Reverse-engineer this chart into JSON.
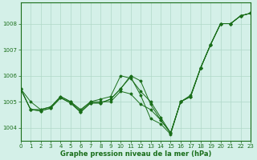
{
  "background_color": "#d4f0e8",
  "grid_color": "#b0d8c8",
  "line_color": "#1a6e1a",
  "xlabel": "Graphe pression niveau de la mer (hPa)",
  "xlim": [
    0,
    23
  ],
  "ylim": [
    1003.5,
    1008.8
  ],
  "yticks": [
    1004,
    1005,
    1006,
    1007,
    1008
  ],
  "xticks": [
    0,
    1,
    2,
    3,
    4,
    5,
    6,
    7,
    8,
    9,
    10,
    11,
    12,
    13,
    14,
    15,
    16,
    17,
    18,
    19,
    20,
    21,
    22,
    23
  ],
  "series": [
    [
      1005.5,
      1005.0,
      1004.7,
      1004.8,
      1005.2,
      1005.0,
      1004.7,
      1005.0,
      1005.1,
      1005.2,
      1006.0,
      1005.9,
      1005.4,
      1005.0,
      1004.4,
      1003.8,
      1005.0,
      1005.2,
      1006.3,
      1007.2,
      1008.0,
      1008.0,
      1008.3,
      1008.4
    ],
    [
      1005.5,
      1004.7,
      1004.7,
      1004.8,
      1005.2,
      1005.0,
      1004.65,
      1005.0,
      1005.0,
      1005.0,
      1005.4,
      1005.3,
      1004.9,
      1004.7,
      1004.3,
      1003.8,
      1005.0,
      1005.2,
      1006.3,
      1007.2,
      1008.0,
      1008.0,
      1008.3,
      1008.4
    ],
    [
      1005.5,
      1004.7,
      1004.65,
      1004.75,
      1005.15,
      1004.95,
      1004.6,
      1004.95,
      1004.95,
      1005.1,
      1005.5,
      1006.0,
      1005.8,
      1004.9,
      1004.3,
      1003.8,
      1005.0,
      1005.2,
      1006.3,
      1007.2,
      1008.0,
      1008.0,
      1008.3,
      1008.4
    ],
    [
      1005.5,
      1004.7,
      1004.65,
      1004.75,
      1005.15,
      1004.95,
      1004.6,
      1004.95,
      1004.95,
      1005.1,
      1005.5,
      1005.95,
      1005.25,
      1004.35,
      1004.15,
      1003.75,
      1005.0,
      1005.25,
      1006.3,
      1007.2,
      1008.0,
      1008.0,
      1008.3,
      1008.4
    ]
  ]
}
